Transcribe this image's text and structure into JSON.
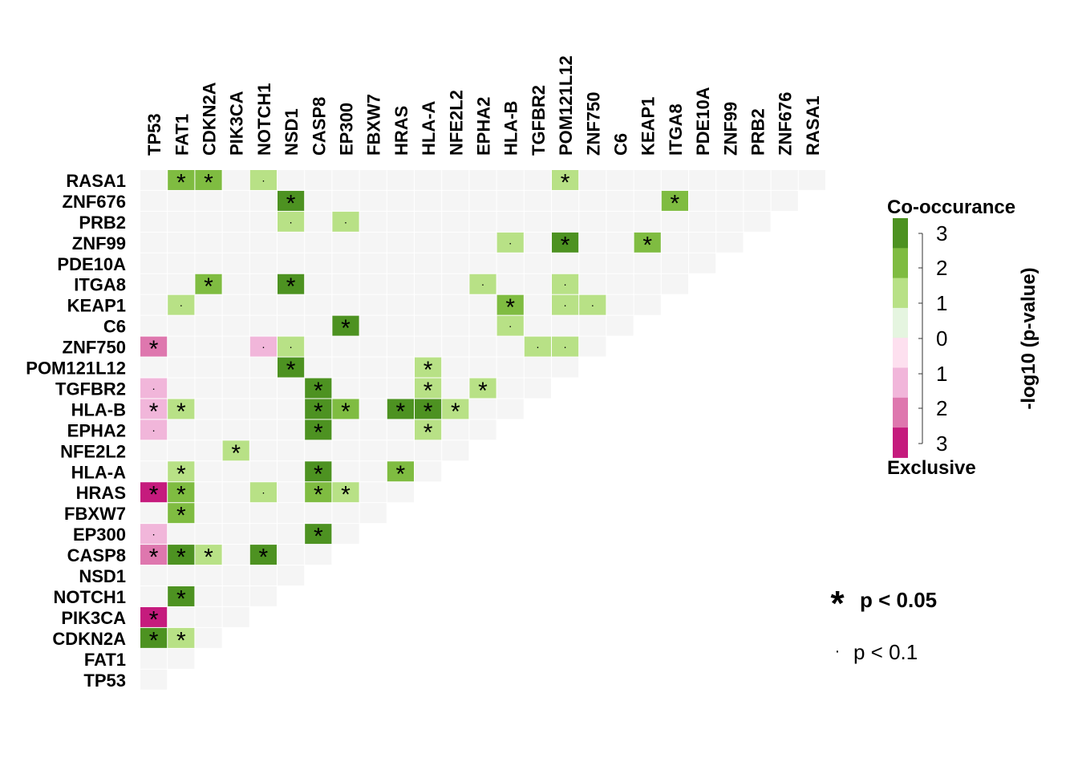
{
  "chart_data": {
    "type": "heatmap",
    "genes": [
      "TP53",
      "FAT1",
      "CDKN2A",
      "PIK3CA",
      "NOTCH1",
      "NSD1",
      "CASP8",
      "EP300",
      "FBXW7",
      "HRAS",
      "HLA-A",
      "NFE2L2",
      "EPHA2",
      "HLA-B",
      "TGFBR2",
      "POM121L12",
      "ZNF750",
      "C6",
      "KEAP1",
      "ITGA8",
      "PDE10A",
      "ZNF99",
      "PRB2",
      "ZNF676",
      "RASA1"
    ],
    "value_scale": "-log10 (p-value)",
    "value_range": [
      0,
      3
    ],
    "background_color": "#f5f5f5",
    "colors": {
      "co": [
        "#e5f5e0",
        "#b8e186",
        "#7fbc41",
        "#4d9221"
      ],
      "ex": [
        "#fde0ef",
        "#f1b6da",
        "#de77ae",
        "#c51b7d"
      ]
    },
    "cells": [
      {
        "row": "RASA1",
        "col": "FAT1",
        "type": "co",
        "level": 2,
        "sig": "*"
      },
      {
        "row": "RASA1",
        "col": "CDKN2A",
        "type": "co",
        "level": 2,
        "sig": "*"
      },
      {
        "row": "RASA1",
        "col": "NOTCH1",
        "type": "co",
        "level": 1,
        "sig": "."
      },
      {
        "row": "RASA1",
        "col": "POM121L12",
        "type": "co",
        "level": 1,
        "sig": "*"
      },
      {
        "row": "ZNF676",
        "col": "NSD1",
        "type": "co",
        "level": 3,
        "sig": "*"
      },
      {
        "row": "ZNF676",
        "col": "ITGA8",
        "type": "co",
        "level": 2,
        "sig": "*"
      },
      {
        "row": "PRB2",
        "col": "NSD1",
        "type": "co",
        "level": 1,
        "sig": "."
      },
      {
        "row": "PRB2",
        "col": "EP300",
        "type": "co",
        "level": 1,
        "sig": "."
      },
      {
        "row": "ZNF99",
        "col": "HLA-B",
        "type": "co",
        "level": 1,
        "sig": "."
      },
      {
        "row": "ZNF99",
        "col": "POM121L12",
        "type": "co",
        "level": 3,
        "sig": "*"
      },
      {
        "row": "ZNF99",
        "col": "KEAP1",
        "type": "co",
        "level": 2,
        "sig": "*"
      },
      {
        "row": "ITGA8",
        "col": "CDKN2A",
        "type": "co",
        "level": 2,
        "sig": "*"
      },
      {
        "row": "ITGA8",
        "col": "NSD1",
        "type": "co",
        "level": 3,
        "sig": "*"
      },
      {
        "row": "ITGA8",
        "col": "EPHA2",
        "type": "co",
        "level": 1,
        "sig": "."
      },
      {
        "row": "ITGA8",
        "col": "POM121L12",
        "type": "co",
        "level": 1,
        "sig": "."
      },
      {
        "row": "KEAP1",
        "col": "FAT1",
        "type": "co",
        "level": 1,
        "sig": "."
      },
      {
        "row": "KEAP1",
        "col": "HLA-B",
        "type": "co",
        "level": 2,
        "sig": "*"
      },
      {
        "row": "KEAP1",
        "col": "POM121L12",
        "type": "co",
        "level": 1,
        "sig": "."
      },
      {
        "row": "KEAP1",
        "col": "ZNF750",
        "type": "co",
        "level": 1,
        "sig": "."
      },
      {
        "row": "C6",
        "col": "EP300",
        "type": "co",
        "level": 3,
        "sig": "*"
      },
      {
        "row": "C6",
        "col": "HLA-B",
        "type": "co",
        "level": 1,
        "sig": "."
      },
      {
        "row": "ZNF750",
        "col": "TP53",
        "type": "ex",
        "level": 2,
        "sig": "*"
      },
      {
        "row": "ZNF750",
        "col": "NOTCH1",
        "type": "ex",
        "level": 1,
        "sig": "."
      },
      {
        "row": "ZNF750",
        "col": "NSD1",
        "type": "co",
        "level": 1,
        "sig": "."
      },
      {
        "row": "ZNF750",
        "col": "TGFBR2",
        "type": "co",
        "level": 1,
        "sig": "."
      },
      {
        "row": "ZNF750",
        "col": "POM121L12",
        "type": "co",
        "level": 1,
        "sig": "."
      },
      {
        "row": "POM121L12",
        "col": "NSD1",
        "type": "co",
        "level": 3,
        "sig": "*"
      },
      {
        "row": "POM121L12",
        "col": "HLA-A",
        "type": "co",
        "level": 1,
        "sig": "*"
      },
      {
        "row": "TGFBR2",
        "col": "TP53",
        "type": "ex",
        "level": 1,
        "sig": "."
      },
      {
        "row": "TGFBR2",
        "col": "CASP8",
        "type": "co",
        "level": 3,
        "sig": "*"
      },
      {
        "row": "TGFBR2",
        "col": "HLA-A",
        "type": "co",
        "level": 1,
        "sig": "*"
      },
      {
        "row": "TGFBR2",
        "col": "EPHA2",
        "type": "co",
        "level": 1,
        "sig": "*"
      },
      {
        "row": "HLA-B",
        "col": "TP53",
        "type": "ex",
        "level": 1,
        "sig": "*"
      },
      {
        "row": "HLA-B",
        "col": "FAT1",
        "type": "co",
        "level": 1,
        "sig": "*"
      },
      {
        "row": "HLA-B",
        "col": "CASP8",
        "type": "co",
        "level": 3,
        "sig": "*"
      },
      {
        "row": "HLA-B",
        "col": "EP300",
        "type": "co",
        "level": 2,
        "sig": "*"
      },
      {
        "row": "HLA-B",
        "col": "HRAS",
        "type": "co",
        "level": 3,
        "sig": "*"
      },
      {
        "row": "HLA-B",
        "col": "HLA-A",
        "type": "co",
        "level": 3,
        "sig": "*"
      },
      {
        "row": "HLA-B",
        "col": "NFE2L2",
        "type": "co",
        "level": 1,
        "sig": "*"
      },
      {
        "row": "EPHA2",
        "col": "TP53",
        "type": "ex",
        "level": 1,
        "sig": "."
      },
      {
        "row": "EPHA2",
        "col": "CASP8",
        "type": "co",
        "level": 3,
        "sig": "*"
      },
      {
        "row": "EPHA2",
        "col": "HLA-A",
        "type": "co",
        "level": 1,
        "sig": "*"
      },
      {
        "row": "NFE2L2",
        "col": "PIK3CA",
        "type": "co",
        "level": 1,
        "sig": "*"
      },
      {
        "row": "HLA-A",
        "col": "FAT1",
        "type": "co",
        "level": 1,
        "sig": "*"
      },
      {
        "row": "HLA-A",
        "col": "CASP8",
        "type": "co",
        "level": 3,
        "sig": "*"
      },
      {
        "row": "HLA-A",
        "col": "HRAS",
        "type": "co",
        "level": 2,
        "sig": "*"
      },
      {
        "row": "HRAS",
        "col": "TP53",
        "type": "ex",
        "level": 3,
        "sig": "*"
      },
      {
        "row": "HRAS",
        "col": "FAT1",
        "type": "co",
        "level": 2,
        "sig": "*"
      },
      {
        "row": "HRAS",
        "col": "NOTCH1",
        "type": "co",
        "level": 1,
        "sig": "."
      },
      {
        "row": "HRAS",
        "col": "CASP8",
        "type": "co",
        "level": 2,
        "sig": "*"
      },
      {
        "row": "HRAS",
        "col": "EP300",
        "type": "co",
        "level": 1,
        "sig": "*"
      },
      {
        "row": "FBXW7",
        "col": "FAT1",
        "type": "co",
        "level": 2,
        "sig": "*"
      },
      {
        "row": "EP300",
        "col": "TP53",
        "type": "ex",
        "level": 1,
        "sig": "."
      },
      {
        "row": "EP300",
        "col": "CASP8",
        "type": "co",
        "level": 3,
        "sig": "*"
      },
      {
        "row": "CASP8",
        "col": "TP53",
        "type": "ex",
        "level": 2,
        "sig": "*"
      },
      {
        "row": "CASP8",
        "col": "FAT1",
        "type": "co",
        "level": 3,
        "sig": "*"
      },
      {
        "row": "CASP8",
        "col": "CDKN2A",
        "type": "co",
        "level": 1,
        "sig": "*"
      },
      {
        "row": "CASP8",
        "col": "NOTCH1",
        "type": "co",
        "level": 3,
        "sig": "*"
      },
      {
        "row": "NOTCH1",
        "col": "FAT1",
        "type": "co",
        "level": 3,
        "sig": "*"
      },
      {
        "row": "PIK3CA",
        "col": "TP53",
        "type": "ex",
        "level": 3,
        "sig": "*"
      },
      {
        "row": "CDKN2A",
        "col": "TP53",
        "type": "co",
        "level": 3,
        "sig": "*"
      },
      {
        "row": "CDKN2A",
        "col": "FAT1",
        "type": "co",
        "level": 1,
        "sig": "*"
      }
    ],
    "legend": {
      "title_top": "Co-occurance",
      "title_bottom": "Exclusive",
      "axis_label": "-log10 (p-value)",
      "ticks": [
        "3",
        "2",
        "1",
        "0",
        "1",
        "2",
        "3"
      ],
      "sig_star_label": "p < 0.05",
      "sig_dot_label": "p < 0.1"
    }
  }
}
